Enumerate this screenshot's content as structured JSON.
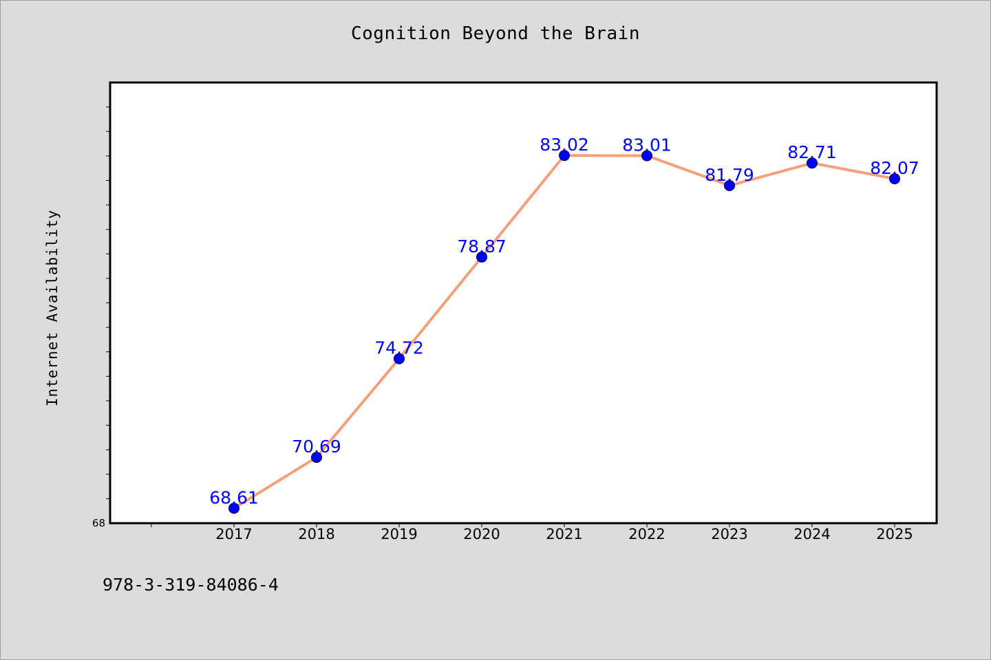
{
  "page": {
    "background": "#dcdcdc",
    "isbn": "978-3-319-84086-4"
  },
  "chart_data": {
    "type": "line",
    "title": "Cognition Beyond the Brain",
    "xlabel": "",
    "ylabel": "Internet Availability",
    "categories": [
      "2017",
      "2018",
      "2019",
      "2020",
      "2021",
      "2022",
      "2023",
      "2024",
      "2025"
    ],
    "values": [
      68.61,
      70.69,
      74.72,
      78.87,
      83.02,
      83.01,
      81.79,
      82.71,
      82.07
    ],
    "value_labels": [
      "68.61",
      "70.69",
      "74.72",
      "78.87",
      "83.02",
      "83.01",
      "81.79",
      "82.71",
      "82.07"
    ],
    "ylim": [
      68,
      86
    ],
    "y_tick_labels": [
      "68"
    ],
    "grid": false,
    "legend": "none",
    "colors": {
      "line": "#f4a07a",
      "marker": "#0000ff",
      "data_label": "#0000ff",
      "plot_background": "#ffffff",
      "axes": "#000000"
    }
  }
}
